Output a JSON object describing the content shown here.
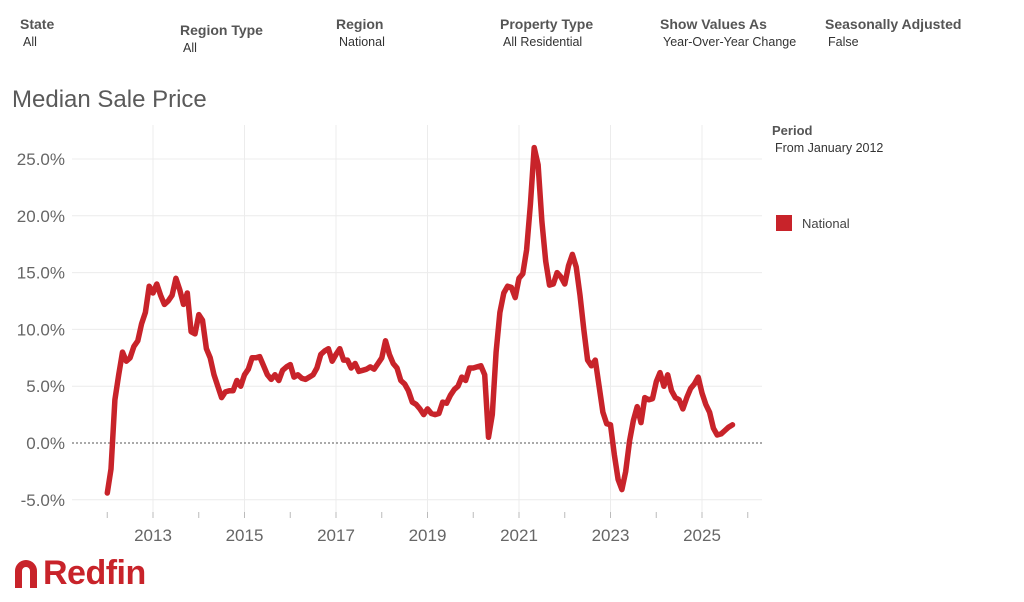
{
  "filters": [
    {
      "label": "State",
      "value": "All"
    },
    {
      "label": "Region Type",
      "value": "All"
    },
    {
      "label": "Region",
      "value": "National"
    },
    {
      "label": "Property Type",
      "value": "All Residential"
    },
    {
      "label": "Show Values As",
      "value": "Year-Over-Year Change"
    },
    {
      "label": "Seasonally Adjusted",
      "value": "False"
    }
  ],
  "legend": {
    "title": "Period",
    "subtitle": "From January 2012",
    "series_label": "National",
    "series_color": "#c8232a"
  },
  "brand": {
    "name": "Redfin",
    "color": "#c8232a"
  },
  "chart_data": {
    "type": "line",
    "title": "Median Sale Price",
    "xlabel": "",
    "ylabel": "",
    "x_tick_labels": [
      "2013",
      "2015",
      "2017",
      "2019",
      "2021",
      "2023",
      "2025"
    ],
    "y_tick_labels": [
      "25.0%",
      "20.0%",
      "15.0%",
      "10.0%",
      "5.0%",
      "0.0%",
      "-5.0%"
    ],
    "ylim": [
      -6,
      28
    ],
    "xlim": [
      2011.5,
      2026.3
    ],
    "grid": true,
    "zero_line": "dotted",
    "legend_position": "right",
    "series": [
      {
        "name": "National",
        "color": "#c8232a",
        "points": [
          [
            2012.0,
            -4.4
          ],
          [
            2012.083,
            -2.3
          ],
          [
            2012.167,
            3.8
          ],
          [
            2012.25,
            6.0
          ],
          [
            2012.333,
            8.0
          ],
          [
            2012.417,
            7.2
          ],
          [
            2012.5,
            7.5
          ],
          [
            2012.583,
            8.5
          ],
          [
            2012.667,
            9.0
          ],
          [
            2012.75,
            10.5
          ],
          [
            2012.833,
            11.5
          ],
          [
            2012.917,
            13.8
          ],
          [
            2013.0,
            13.2
          ],
          [
            2013.083,
            14.0
          ],
          [
            2013.167,
            13.0
          ],
          [
            2013.25,
            12.2
          ],
          [
            2013.333,
            12.5
          ],
          [
            2013.417,
            13.0
          ],
          [
            2013.5,
            14.5
          ],
          [
            2013.583,
            13.5
          ],
          [
            2013.667,
            12.2
          ],
          [
            2013.75,
            13.2
          ],
          [
            2013.833,
            9.8
          ],
          [
            2013.917,
            9.6
          ],
          [
            2014.0,
            11.3
          ],
          [
            2014.083,
            10.8
          ],
          [
            2014.167,
            8.3
          ],
          [
            2014.25,
            7.5
          ],
          [
            2014.333,
            6.0
          ],
          [
            2014.417,
            5.0
          ],
          [
            2014.5,
            4.0
          ],
          [
            2014.583,
            4.5
          ],
          [
            2014.667,
            4.6
          ],
          [
            2014.75,
            4.6
          ],
          [
            2014.833,
            5.5
          ],
          [
            2014.917,
            5.0
          ],
          [
            2015.0,
            6.0
          ],
          [
            2015.083,
            6.5
          ],
          [
            2015.167,
            7.5
          ],
          [
            2015.25,
            7.5
          ],
          [
            2015.333,
            7.6
          ],
          [
            2015.417,
            6.8
          ],
          [
            2015.5,
            6.0
          ],
          [
            2015.583,
            5.6
          ],
          [
            2015.667,
            6.0
          ],
          [
            2015.75,
            5.5
          ],
          [
            2015.833,
            6.4
          ],
          [
            2015.917,
            6.7
          ],
          [
            2016.0,
            6.9
          ],
          [
            2016.083,
            5.8
          ],
          [
            2016.167,
            6.0
          ],
          [
            2016.25,
            5.7
          ],
          [
            2016.333,
            5.6
          ],
          [
            2016.417,
            5.8
          ],
          [
            2016.5,
            6.0
          ],
          [
            2016.583,
            6.6
          ],
          [
            2016.667,
            7.8
          ],
          [
            2016.75,
            8.1
          ],
          [
            2016.833,
            8.3
          ],
          [
            2016.917,
            7.2
          ],
          [
            2017.0,
            7.8
          ],
          [
            2017.083,
            8.3
          ],
          [
            2017.167,
            7.3
          ],
          [
            2017.25,
            7.3
          ],
          [
            2017.333,
            6.6
          ],
          [
            2017.417,
            7.0
          ],
          [
            2017.5,
            6.3
          ],
          [
            2017.583,
            6.4
          ],
          [
            2017.667,
            6.5
          ],
          [
            2017.75,
            6.7
          ],
          [
            2017.833,
            6.5
          ],
          [
            2017.917,
            7.0
          ],
          [
            2018.0,
            7.5
          ],
          [
            2018.083,
            9.0
          ],
          [
            2018.167,
            7.8
          ],
          [
            2018.25,
            7.0
          ],
          [
            2018.333,
            6.6
          ],
          [
            2018.417,
            5.5
          ],
          [
            2018.5,
            5.2
          ],
          [
            2018.583,
            4.6
          ],
          [
            2018.667,
            3.6
          ],
          [
            2018.75,
            3.4
          ],
          [
            2018.833,
            3.0
          ],
          [
            2018.917,
            2.5
          ],
          [
            2019.0,
            3.0
          ],
          [
            2019.083,
            2.6
          ],
          [
            2019.167,
            2.5
          ],
          [
            2019.25,
            2.6
          ],
          [
            2019.333,
            3.6
          ],
          [
            2019.417,
            3.5
          ],
          [
            2019.5,
            4.2
          ],
          [
            2019.583,
            4.7
          ],
          [
            2019.667,
            5.0
          ],
          [
            2019.75,
            5.8
          ],
          [
            2019.833,
            5.5
          ],
          [
            2019.917,
            6.6
          ],
          [
            2020.0,
            6.6
          ],
          [
            2020.083,
            6.7
          ],
          [
            2020.167,
            6.8
          ],
          [
            2020.25,
            6.0
          ],
          [
            2020.333,
            0.5
          ],
          [
            2020.417,
            2.5
          ],
          [
            2020.5,
            8.0
          ],
          [
            2020.583,
            11.5
          ],
          [
            2020.667,
            13.2
          ],
          [
            2020.75,
            13.8
          ],
          [
            2020.833,
            13.7
          ],
          [
            2020.917,
            12.8
          ],
          [
            2021.0,
            14.5
          ],
          [
            2021.083,
            14.9
          ],
          [
            2021.167,
            17.0
          ],
          [
            2021.25,
            21.0
          ],
          [
            2021.333,
            26.0
          ],
          [
            2021.417,
            24.5
          ],
          [
            2021.5,
            19.5
          ],
          [
            2021.583,
            16.0
          ],
          [
            2021.667,
            13.9
          ],
          [
            2021.75,
            14.0
          ],
          [
            2021.833,
            15.0
          ],
          [
            2021.917,
            14.6
          ],
          [
            2022.0,
            14.0
          ],
          [
            2022.083,
            15.6
          ],
          [
            2022.167,
            16.6
          ],
          [
            2022.25,
            15.5
          ],
          [
            2022.333,
            13.0
          ],
          [
            2022.417,
            10.0
          ],
          [
            2022.5,
            7.3
          ],
          [
            2022.583,
            6.8
          ],
          [
            2022.667,
            7.3
          ],
          [
            2022.75,
            5.0
          ],
          [
            2022.833,
            2.7
          ],
          [
            2022.917,
            1.7
          ],
          [
            2023.0,
            1.6
          ],
          [
            2023.083,
            -1.0
          ],
          [
            2023.167,
            -3.2
          ],
          [
            2023.25,
            -4.1
          ],
          [
            2023.333,
            -2.5
          ],
          [
            2023.417,
            0.2
          ],
          [
            2023.5,
            2.0
          ],
          [
            2023.583,
            3.2
          ],
          [
            2023.667,
            1.8
          ],
          [
            2023.75,
            4.0
          ],
          [
            2023.833,
            3.8
          ],
          [
            2023.917,
            3.9
          ],
          [
            2024.0,
            5.4
          ],
          [
            2024.083,
            6.2
          ],
          [
            2024.167,
            5.0
          ],
          [
            2024.25,
            6.0
          ],
          [
            2024.333,
            4.6
          ],
          [
            2024.417,
            4.0
          ],
          [
            2024.5,
            3.8
          ],
          [
            2024.583,
            3.0
          ],
          [
            2024.667,
            4.0
          ],
          [
            2024.75,
            4.8
          ],
          [
            2024.833,
            5.2
          ],
          [
            2024.917,
            5.8
          ],
          [
            2025.0,
            4.4
          ],
          [
            2025.083,
            3.4
          ],
          [
            2025.167,
            2.7
          ],
          [
            2025.25,
            1.3
          ],
          [
            2025.333,
            0.7
          ],
          [
            2025.417,
            0.8
          ],
          [
            2025.5,
            1.1
          ],
          [
            2025.583,
            1.4
          ],
          [
            2025.667,
            1.6
          ]
        ]
      }
    ]
  }
}
